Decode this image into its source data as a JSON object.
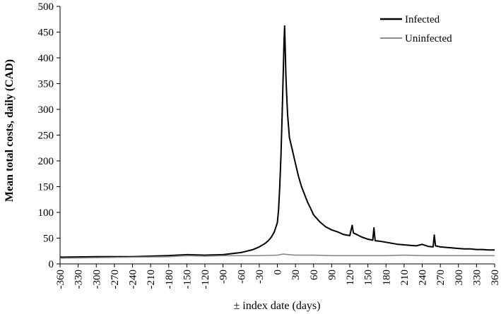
{
  "chart_data": {
    "type": "line",
    "title": "",
    "xlabel": "± index date (days)",
    "ylabel": "Mean total costs, daily (CAD)",
    "xlim": [
      -360,
      360
    ],
    "ylim": [
      0,
      500
    ],
    "x_ticks": [
      -360,
      -330,
      -300,
      -270,
      -240,
      -210,
      -180,
      -150,
      -120,
      -90,
      -60,
      -30,
      0,
      30,
      60,
      90,
      120,
      150,
      180,
      210,
      240,
      270,
      300,
      330,
      360
    ],
    "y_ticks": [
      0,
      50,
      100,
      150,
      200,
      250,
      300,
      350,
      400,
      450,
      500
    ],
    "grid": false,
    "legend_position": "top-right",
    "series": [
      {
        "name": "Infected",
        "color": "#000000",
        "x": [
          -360,
          -300,
          -240,
          -180,
          -150,
          -120,
          -90,
          -60,
          -50,
          -40,
          -30,
          -20,
          -15,
          -10,
          -5,
          0,
          2,
          4,
          6,
          8,
          10,
          11,
          12,
          13,
          14,
          15,
          17,
          20,
          25,
          30,
          35,
          40,
          45,
          50,
          55,
          60,
          70,
          80,
          90,
          100,
          110,
          120,
          124,
          126,
          130,
          140,
          150,
          158,
          160,
          162,
          170,
          180,
          190,
          200,
          210,
          220,
          230,
          240,
          250,
          258,
          260,
          262,
          270,
          280,
          290,
          300,
          310,
          320,
          330,
          340,
          350,
          360
        ],
        "y": [
          13,
          14,
          14,
          16,
          18,
          17,
          18,
          22,
          25,
          28,
          33,
          40,
          45,
          52,
          62,
          80,
          105,
          150,
          210,
          290,
          380,
          430,
          462,
          420,
          370,
          340,
          290,
          245,
          220,
          195,
          170,
          150,
          135,
          120,
          108,
          95,
          82,
          72,
          66,
          62,
          57,
          55,
          75,
          60,
          58,
          52,
          48,
          46,
          70,
          45,
          44,
          42,
          40,
          38,
          37,
          36,
          35,
          38,
          34,
          33,
          56,
          35,
          33,
          32,
          31,
          30,
          29,
          29,
          28,
          28,
          27,
          27
        ]
      },
      {
        "name": "Uninfected",
        "color": "#8a8a8a",
        "x": [
          -360,
          -300,
          -240,
          -180,
          -150,
          -120,
          -90,
          -60,
          -30,
          0,
          10,
          20,
          30,
          60,
          90,
          120,
          150,
          180,
          210,
          240,
          270,
          300,
          330,
          360
        ],
        "y": [
          11,
          12,
          13,
          14,
          16,
          15,
          16,
          16,
          16,
          17,
          19,
          18,
          17,
          17,
          16,
          16,
          16,
          16,
          17,
          16,
          16,
          16,
          16,
          16
        ]
      }
    ]
  }
}
